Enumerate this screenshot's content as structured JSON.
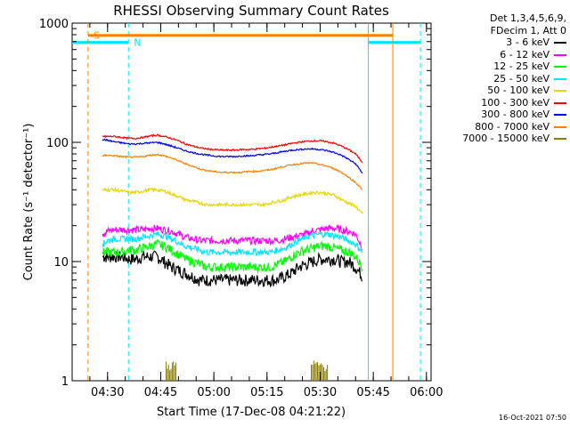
{
  "chart_data": {
    "type": "line",
    "title": "RHESSI Observing Summary Count Rates",
    "xlabel": "Start Time (17-Dec-08 04:21:22)",
    "ylabel": "Count Rate (s⁻¹ detector⁻¹)",
    "yscale": "log",
    "ylim": [
      1,
      1000
    ],
    "xlim_minutes_after_0420": [
      0,
      101.3
    ],
    "xticks": [
      "04:30",
      "04:45",
      "05:00",
      "05:15",
      "05:30",
      "05:45",
      "06:00"
    ],
    "yticks": [
      "1",
      "10",
      "100",
      "1000"
    ],
    "legend_header": [
      "Det 1,3,4,5,6,9,",
      "FDecim 1, Att 0"
    ],
    "legend_position": "right, outside",
    "x_minutes_after_0420": [
      8.6,
      10,
      12,
      14,
      16,
      18,
      20,
      22,
      24,
      26,
      28,
      30,
      32,
      34,
      36,
      38,
      40,
      42,
      44,
      46,
      48,
      50,
      52,
      54,
      56,
      58,
      60,
      62,
      64,
      66,
      68,
      70,
      72,
      74,
      76,
      78,
      80,
      81.9
    ],
    "series": [
      {
        "name": "3 - 6 keV",
        "color": "#000000",
        "values": [
          11,
          11,
          11,
          11,
          10.5,
          10.5,
          11,
          11,
          11,
          10,
          9,
          8.5,
          8,
          7.5,
          7,
          7,
          7,
          7,
          7,
          7,
          7,
          7,
          7,
          7,
          7,
          7,
          7.5,
          8,
          9,
          9.5,
          10,
          10.5,
          10.5,
          10.5,
          10,
          10,
          9,
          7.5
        ]
      },
      {
        "name": "6 - 12 keV",
        "color": "#ff00ff",
        "values": [
          17,
          18,
          18.5,
          18.5,
          18.5,
          18.5,
          18.5,
          19,
          19,
          18.5,
          18,
          17,
          16,
          15.5,
          15,
          15,
          15,
          15,
          15,
          15,
          15,
          15,
          15,
          15,
          15,
          15,
          15.5,
          16,
          16.5,
          17,
          18,
          18.5,
          19,
          19,
          18.5,
          18,
          17,
          13
        ]
      },
      {
        "name": "12 - 25 keV",
        "color": "#00ff00",
        "values": [
          12,
          12,
          12,
          12,
          12.5,
          12.5,
          13,
          13.5,
          14,
          13.5,
          12.5,
          11.5,
          10.5,
          10,
          9.5,
          9,
          9,
          9,
          9,
          9,
          9,
          9,
          9,
          9,
          9,
          9.5,
          10,
          11,
          12,
          12.5,
          13,
          13.5,
          13.5,
          13,
          12.5,
          12,
          11,
          9
        ]
      },
      {
        "name": "25 - 50 keV",
        "color": "#00e5ff",
        "values": [
          14,
          15,
          15.5,
          15.5,
          15.5,
          15.5,
          16,
          16.5,
          17,
          16.5,
          15.5,
          14.5,
          13.5,
          13,
          12.5,
          12,
          12,
          12,
          12,
          12,
          12,
          12,
          12,
          12,
          12,
          12.5,
          13,
          14,
          15,
          16,
          16.5,
          17,
          17,
          16.5,
          16,
          15,
          14,
          12
        ]
      },
      {
        "name": "50 - 100 keV",
        "color": "#e6d800",
        "values": [
          40,
          40,
          40,
          39,
          38,
          38,
          39,
          40,
          40,
          39,
          37,
          35,
          33,
          32,
          31,
          30,
          30,
          30,
          30,
          30,
          30,
          30,
          30,
          30,
          31,
          32,
          33,
          35,
          36,
          37,
          38,
          38,
          37,
          36,
          33,
          31,
          29,
          25
        ]
      },
      {
        "name": "100 - 300 keV",
        "color": "#ff0000",
        "values": [
          112,
          112,
          112,
          110,
          108,
          108,
          110,
          113,
          115,
          112,
          108,
          103,
          97,
          93,
          90,
          88,
          87,
          86,
          86,
          86,
          87,
          87,
          88,
          89,
          91,
          93,
          95,
          98,
          100,
          102,
          103,
          103,
          101,
          98,
          93,
          87,
          80,
          68
        ]
      },
      {
        "name": "300 - 800 keV",
        "color": "#0000ff",
        "values": [
          106,
          104,
          101,
          99,
          97,
          97,
          98,
          99,
          100,
          97,
          93,
          89,
          85,
          82,
          80,
          78,
          77,
          76,
          76,
          76,
          77,
          77,
          78,
          79,
          80,
          82,
          84,
          86,
          87,
          88,
          88,
          87,
          85,
          82,
          78,
          72,
          66,
          55
        ]
      },
      {
        "name": "800 - 7000 keV",
        "color": "#ff8000",
        "values": [
          77,
          78,
          77,
          76,
          75,
          75,
          76,
          78,
          79,
          77,
          74,
          70,
          66,
          63,
          60,
          58,
          57,
          56,
          56,
          56,
          56,
          57,
          57,
          58,
          59,
          61,
          63,
          65,
          66,
          67,
          67,
          65,
          63,
          60,
          56,
          51,
          46,
          40
        ]
      },
      {
        "name": "7000 - 15000 keV",
        "color": "#8b7d00",
        "values": [
          1,
          1,
          1,
          1,
          1,
          1,
          1,
          1,
          1,
          1,
          1,
          1,
          1,
          1,
          1,
          1,
          1,
          1,
          1,
          1,
          1,
          1,
          1,
          1,
          1,
          1,
          1,
          1,
          1,
          1,
          1,
          1,
          1,
          1,
          1,
          1,
          1,
          1
        ]
      }
    ],
    "bursts_7000_15000": [
      {
        "from": 26.5,
        "to": 29.5,
        "peak": 1.5
      },
      {
        "from": 67.5,
        "to": 72.3,
        "peak": 1.5
      }
    ],
    "attenuator_markers": [
      {
        "label": "S",
        "color": "#ff8000",
        "x_minutes_after_0420": [
          4.5,
          90.5
        ],
        "level": 790
      }
    ],
    "night_markers": [
      {
        "label": "N",
        "color": "#00e5ff",
        "x_minutes_after_0420": [
          -0.5,
          15.9,
          83.6,
          98.3
        ],
        "level": 690
      }
    ],
    "timestamp": "16-Oct-2021 07:50"
  }
}
